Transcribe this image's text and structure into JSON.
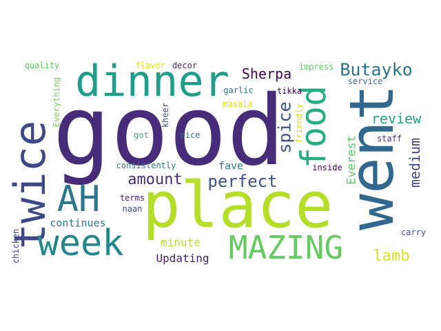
{
  "words": [
    {
      "key": "good",
      "text": "good",
      "color": "#472c7a"
    },
    {
      "key": "place",
      "text": "place",
      "color": "#b5de2b"
    },
    {
      "key": "went",
      "text": "went",
      "color": "#31688e"
    },
    {
      "key": "dinner",
      "text": "dinner",
      "color": "#1f9e89"
    },
    {
      "key": "twice",
      "text": "twice",
      "color": "#3e4989"
    },
    {
      "key": "week",
      "text": "week",
      "color": "#23888e"
    },
    {
      "key": "mazing",
      "text": "MAZING",
      "color": "#63cb5f"
    },
    {
      "key": "ah",
      "text": "AH",
      "color": "#2a788e"
    },
    {
      "key": "food",
      "text": "food",
      "color": "#26ad81"
    },
    {
      "key": "butayko",
      "text": "Butayko",
      "color": "#2c728e"
    },
    {
      "key": "sherpa",
      "text": "Sherpa",
      "color": "#440154"
    },
    {
      "key": "spice",
      "text": "spice",
      "color": "#3b528b"
    },
    {
      "key": "perfect",
      "text": "perfect",
      "color": "#3b528b"
    },
    {
      "key": "amount",
      "text": "amount",
      "color": "#472d7b"
    },
    {
      "key": "review",
      "text": "review",
      "color": "#20a386"
    },
    {
      "key": "medium",
      "text": "medium",
      "color": "#414487"
    },
    {
      "key": "everest",
      "text": "Everest",
      "color": "#5ec962"
    },
    {
      "key": "lamb",
      "text": "lamb",
      "color": "#dde318"
    },
    {
      "key": "continues",
      "text": "continues",
      "color": "#2a788e"
    },
    {
      "key": "fave",
      "text": "fave",
      "color": "#2a788e"
    },
    {
      "key": "minute",
      "text": "minute",
      "color": "#b5de2b"
    },
    {
      "key": "updating",
      "text": "Updating",
      "color": "#481a6c"
    },
    {
      "key": "quality",
      "text": "quality",
      "color": "#5ec962"
    },
    {
      "key": "everything",
      "text": "Everything",
      "color": "#7ad151"
    },
    {
      "key": "flavor",
      "text": "flavor",
      "color": "#dde318"
    },
    {
      "key": "decor",
      "text": "decor",
      "color": "#482878"
    },
    {
      "key": "kheer",
      "text": "kheer",
      "color": "#3e4989"
    },
    {
      "key": "garlic",
      "text": "garlic",
      "color": "#2c728e"
    },
    {
      "key": "masala",
      "text": "masala",
      "color": "#dde318"
    },
    {
      "key": "tikka",
      "text": "tikka",
      "color": "#440154"
    },
    {
      "key": "friendly",
      "text": "friendly",
      "color": "#dde318"
    },
    {
      "key": "impress",
      "text": "impress",
      "color": "#5ec962"
    },
    {
      "key": "service",
      "text": "service",
      "color": "#2a788e"
    },
    {
      "key": "staff",
      "text": "staff",
      "color": "#46327e"
    },
    {
      "key": "got",
      "text": "got",
      "color": "#35b779"
    },
    {
      "key": "nice",
      "text": "nice",
      "color": "#2a788e"
    },
    {
      "key": "consistently",
      "text": "consistently",
      "color": "#2a788e"
    },
    {
      "key": "inside",
      "text": "inside",
      "color": "#440154"
    },
    {
      "key": "terms",
      "text": "terms",
      "color": "#481a6c"
    },
    {
      "key": "naan",
      "text": "naan",
      "color": "#3e4989"
    },
    {
      "key": "chicken",
      "text": "chicken",
      "color": "#3e4989"
    },
    {
      "key": "carry",
      "text": "carry",
      "color": "#3b528b"
    }
  ]
}
